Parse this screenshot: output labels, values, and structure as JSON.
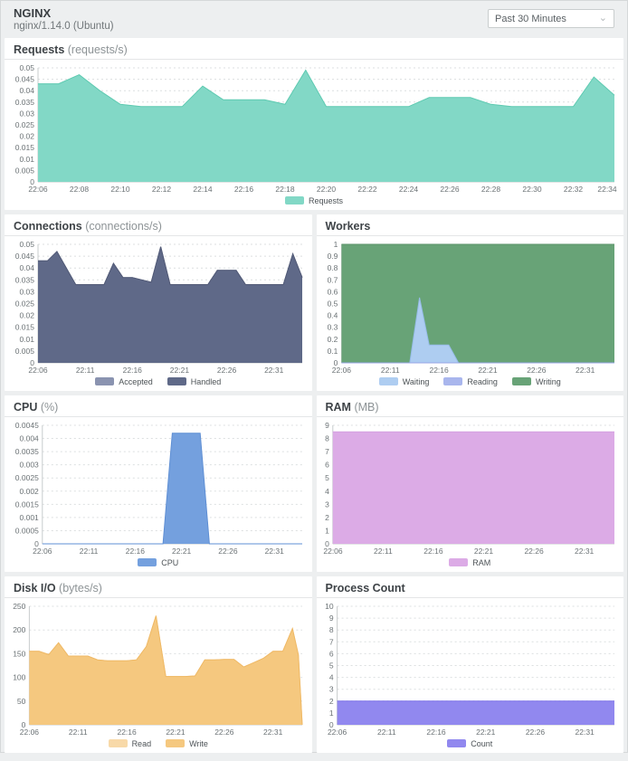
{
  "header": {
    "title": "NGINX",
    "subtitle": "nginx/1.14.0 (Ubuntu)",
    "time_range": "Past 30 Minutes"
  },
  "chart_data": [
    {
      "type": "area",
      "title": "Requests",
      "unit": "(requests/s)",
      "xlim": [
        6,
        34
      ],
      "ylim": [
        0,
        0.05
      ],
      "yticks": [
        "0",
        "0.005",
        "0.01",
        "0.015",
        "0.02",
        "0.025",
        "0.03",
        "0.035",
        "0.04",
        "0.045",
        "0.05"
      ],
      "xticks": [
        [
          6,
          "22:06"
        ],
        [
          8,
          "22:08"
        ],
        [
          10,
          "22:10"
        ],
        [
          12,
          "22:12"
        ],
        [
          14,
          "22:14"
        ],
        [
          16,
          "22:16"
        ],
        [
          18,
          "22:18"
        ],
        [
          20,
          "22:20"
        ],
        [
          22,
          "22:22"
        ],
        [
          24,
          "22:24"
        ],
        [
          26,
          "22:26"
        ],
        [
          28,
          "22:28"
        ],
        [
          30,
          "22:30"
        ],
        [
          32,
          "22:32"
        ],
        [
          34,
          "22:34"
        ]
      ],
      "series": [
        {
          "name": "Requests",
          "color": "#82d8c6",
          "stroke": "#5ecab1",
          "z": 0,
          "points": [
            [
              6,
              0.043
            ],
            [
              7,
              0.043
            ],
            [
              8,
              0.047
            ],
            [
              9,
              0.04
            ],
            [
              10,
              0.034
            ],
            [
              11,
              0.033
            ],
            [
              12,
              0.033
            ],
            [
              13,
              0.033
            ],
            [
              14,
              0.042
            ],
            [
              15,
              0.036
            ],
            [
              16,
              0.036
            ],
            [
              17,
              0.036
            ],
            [
              18,
              0.034
            ],
            [
              19,
              0.049
            ],
            [
              20,
              0.033
            ],
            [
              21,
              0.033
            ],
            [
              22,
              0.033
            ],
            [
              23,
              0.033
            ],
            [
              24,
              0.033
            ],
            [
              25,
              0.037
            ],
            [
              26,
              0.037
            ],
            [
              27,
              0.037
            ],
            [
              28,
              0.034
            ],
            [
              29,
              0.033
            ],
            [
              30,
              0.033
            ],
            [
              31,
              0.033
            ],
            [
              32,
              0.033
            ],
            [
              33,
              0.046
            ],
            [
              34,
              0.038
            ]
          ]
        }
      ]
    },
    {
      "type": "area",
      "title": "Connections",
      "unit": "(connections/s)",
      "xlim": [
        6,
        34
      ],
      "ylim": [
        0,
        0.05
      ],
      "yticks": [
        "0",
        "0.005",
        "0.01",
        "0.015",
        "0.02",
        "0.025",
        "0.03",
        "0.035",
        "0.04",
        "0.045",
        "0.05"
      ],
      "xticks": [
        [
          6,
          "22:06"
        ],
        [
          11,
          "22:11"
        ],
        [
          16,
          "22:16"
        ],
        [
          21,
          "22:21"
        ],
        [
          26,
          "22:26"
        ],
        [
          31,
          "22:31"
        ]
      ],
      "series": [
        {
          "name": "Accepted",
          "color": "#8a93b0",
          "stroke": "#7d87a5",
          "z": 0,
          "points": [
            [
              6,
              0.043
            ],
            [
              7,
              0.043
            ],
            [
              8,
              0.047
            ],
            [
              9,
              0.04
            ],
            [
              10,
              0.033
            ],
            [
              11,
              0.033
            ],
            [
              12,
              0.033
            ],
            [
              13,
              0.033
            ],
            [
              14,
              0.042
            ],
            [
              15,
              0.036
            ],
            [
              16,
              0.036
            ],
            [
              17,
              0.035
            ],
            [
              18,
              0.034
            ],
            [
              19,
              0.049
            ],
            [
              20,
              0.033
            ],
            [
              21,
              0.033
            ],
            [
              22,
              0.033
            ],
            [
              23,
              0.033
            ],
            [
              24,
              0.033
            ],
            [
              25,
              0.039
            ],
            [
              26,
              0.039
            ],
            [
              27,
              0.039
            ],
            [
              28,
              0.033
            ],
            [
              29,
              0.033
            ],
            [
              30,
              0.033
            ],
            [
              31,
              0.033
            ],
            [
              32,
              0.033
            ],
            [
              33,
              0.046
            ],
            [
              34,
              0.036
            ]
          ]
        },
        {
          "name": "Handled",
          "color": "#5f6988",
          "stroke": "#525a76",
          "z": 1,
          "points": [
            [
              6,
              0.043
            ],
            [
              7,
              0.043
            ],
            [
              8,
              0.047
            ],
            [
              9,
              0.04
            ],
            [
              10,
              0.033
            ],
            [
              11,
              0.033
            ],
            [
              12,
              0.033
            ],
            [
              13,
              0.033
            ],
            [
              14,
              0.042
            ],
            [
              15,
              0.036
            ],
            [
              16,
              0.036
            ],
            [
              17,
              0.035
            ],
            [
              18,
              0.034
            ],
            [
              19,
              0.049
            ],
            [
              20,
              0.033
            ],
            [
              21,
              0.033
            ],
            [
              22,
              0.033
            ],
            [
              23,
              0.033
            ],
            [
              24,
              0.033
            ],
            [
              25,
              0.039
            ],
            [
              26,
              0.039
            ],
            [
              27,
              0.039
            ],
            [
              28,
              0.033
            ],
            [
              29,
              0.033
            ],
            [
              30,
              0.033
            ],
            [
              31,
              0.033
            ],
            [
              32,
              0.033
            ],
            [
              33,
              0.046
            ],
            [
              34,
              0.036
            ]
          ]
        }
      ]
    },
    {
      "type": "area",
      "title": "Workers",
      "unit": "",
      "xlim": [
        6,
        34
      ],
      "ylim": [
        0,
        1
      ],
      "yticks": [
        "0",
        "0.1",
        "0.2",
        "0.3",
        "0.4",
        "0.5",
        "0.6",
        "0.7",
        "0.8",
        "0.9",
        "1"
      ],
      "xticks": [
        [
          6,
          "22:06"
        ],
        [
          11,
          "22:11"
        ],
        [
          16,
          "22:16"
        ],
        [
          21,
          "22:21"
        ],
        [
          26,
          "22:26"
        ],
        [
          31,
          "22:31"
        ]
      ],
      "series": [
        {
          "name": "Waiting",
          "color": "#aecdf1",
          "stroke": "#97bce9",
          "z": 1,
          "points": [
            [
              6,
              0
            ],
            [
              13,
              0
            ],
            [
              14,
              0.55
            ],
            [
              15,
              0.15
            ],
            [
              17,
              0.15
            ],
            [
              18,
              0
            ],
            [
              34,
              0
            ]
          ]
        },
        {
          "name": "Reading",
          "color": "#a9b6ed",
          "stroke": "#97a5e6",
          "z": 2,
          "points": [
            [
              6,
              0
            ],
            [
              34,
              0
            ]
          ]
        },
        {
          "name": "Writing",
          "color": "#68a377",
          "stroke": "#5b9369",
          "z": 0,
          "points": [
            [
              6,
              1
            ],
            [
              34,
              1
            ]
          ]
        }
      ]
    },
    {
      "type": "area",
      "title": "CPU",
      "unit": "(%)",
      "xlim": [
        6,
        34
      ],
      "ylim": [
        0,
        0.0045
      ],
      "yticks": [
        "0",
        "0.0005",
        "0.001",
        "0.0015",
        "0.002",
        "0.0025",
        "0.003",
        "0.0035",
        "0.004",
        "0.0045"
      ],
      "xticks": [
        [
          6,
          "22:06"
        ],
        [
          11,
          "22:11"
        ],
        [
          16,
          "22:16"
        ],
        [
          21,
          "22:21"
        ],
        [
          26,
          "22:26"
        ],
        [
          31,
          "22:31"
        ]
      ],
      "series": [
        {
          "name": "CPU",
          "color": "#74a0de",
          "stroke": "#5f8fd4",
          "z": 0,
          "points": [
            [
              6,
              0
            ],
            [
              19,
              0
            ],
            [
              20,
              0.0042
            ],
            [
              23,
              0.0042
            ],
            [
              24,
              0
            ],
            [
              34,
              0
            ]
          ]
        }
      ]
    },
    {
      "type": "area",
      "title": "RAM",
      "unit": "(MB)",
      "xlim": [
        6,
        34
      ],
      "ylim": [
        0,
        9
      ],
      "yticks": [
        "0",
        "1",
        "2",
        "3",
        "4",
        "5",
        "6",
        "7",
        "8",
        "9"
      ],
      "xticks": [
        [
          6,
          "22:06"
        ],
        [
          11,
          "22:11"
        ],
        [
          16,
          "22:16"
        ],
        [
          21,
          "22:21"
        ],
        [
          26,
          "22:26"
        ],
        [
          31,
          "22:31"
        ]
      ],
      "series": [
        {
          "name": "RAM",
          "color": "#dcabe6",
          "stroke": "#d49fe0",
          "z": 0,
          "points": [
            [
              6,
              8.5
            ],
            [
              34,
              8.5
            ]
          ]
        }
      ]
    },
    {
      "type": "area",
      "title": "Disk I/O",
      "unit": "(bytes/s)",
      "xlim": [
        6,
        34
      ],
      "ylim": [
        0,
        250
      ],
      "yticks": [
        "0",
        "50",
        "100",
        "150",
        "200",
        "250"
      ],
      "xticks": [
        [
          6,
          "22:06"
        ],
        [
          11,
          "22:11"
        ],
        [
          16,
          "22:16"
        ],
        [
          21,
          "22:21"
        ],
        [
          26,
          "22:26"
        ],
        [
          31,
          "22:31"
        ]
      ],
      "series": [
        {
          "name": "Read",
          "color": "#f8d9a8",
          "stroke": "#f3cd92",
          "z": 0,
          "points": [
            [
              6,
              155
            ],
            [
              7,
              155
            ],
            [
              8,
              148
            ],
            [
              9,
              173
            ],
            [
              10,
              145
            ],
            [
              11,
              145
            ],
            [
              12,
              145
            ],
            [
              13,
              137
            ],
            [
              14,
              135
            ],
            [
              15,
              135
            ],
            [
              16,
              135
            ],
            [
              17,
              137
            ],
            [
              18,
              165
            ],
            [
              19,
              230
            ],
            [
              20,
              102
            ],
            [
              21,
              102
            ],
            [
              22,
              102
            ],
            [
              23,
              103
            ],
            [
              24,
              137
            ],
            [
              25,
              137
            ],
            [
              26,
              138
            ],
            [
              27,
              138
            ],
            [
              28,
              122
            ],
            [
              29,
              131
            ],
            [
              30,
              140
            ],
            [
              31,
              155
            ],
            [
              32,
              155
            ],
            [
              33,
              203
            ],
            [
              33.6,
              148
            ],
            [
              34,
              0
            ]
          ]
        },
        {
          "name": "Write",
          "color": "#f5c87f",
          "stroke": "#efb966",
          "z": 1,
          "points": [
            [
              6,
              155
            ],
            [
              7,
              155
            ],
            [
              8,
              148
            ],
            [
              9,
              173
            ],
            [
              10,
              145
            ],
            [
              11,
              145
            ],
            [
              12,
              145
            ],
            [
              13,
              137
            ],
            [
              14,
              135
            ],
            [
              15,
              135
            ],
            [
              16,
              135
            ],
            [
              17,
              137
            ],
            [
              18,
              165
            ],
            [
              19,
              230
            ],
            [
              20,
              102
            ],
            [
              21,
              102
            ],
            [
              22,
              102
            ],
            [
              23,
              103
            ],
            [
              24,
              137
            ],
            [
              25,
              137
            ],
            [
              26,
              138
            ],
            [
              27,
              138
            ],
            [
              28,
              122
            ],
            [
              29,
              131
            ],
            [
              30,
              140
            ],
            [
              31,
              155
            ],
            [
              32,
              155
            ],
            [
              33,
              203
            ],
            [
              33.6,
              148
            ],
            [
              34,
              0
            ]
          ]
        }
      ]
    },
    {
      "type": "area",
      "title": "Process Count",
      "unit": "",
      "xlim": [
        6,
        34
      ],
      "ylim": [
        0,
        10
      ],
      "yticks": [
        "0",
        "1",
        "2",
        "3",
        "4",
        "5",
        "6",
        "7",
        "8",
        "9",
        "10"
      ],
      "xticks": [
        [
          6,
          "22:06"
        ],
        [
          11,
          "22:11"
        ],
        [
          16,
          "22:16"
        ],
        [
          21,
          "22:21"
        ],
        [
          26,
          "22:26"
        ],
        [
          31,
          "22:31"
        ]
      ],
      "series": [
        {
          "name": "Count",
          "color": "#9188ef",
          "stroke": "#7d73e9",
          "z": 0,
          "points": [
            [
              6,
              2
            ],
            [
              34,
              2
            ]
          ]
        }
      ]
    }
  ],
  "theme": {
    "grid_color": "#dcdfe0",
    "axis_color": "#c8cccd",
    "tick_text_color": "#6b7275"
  }
}
